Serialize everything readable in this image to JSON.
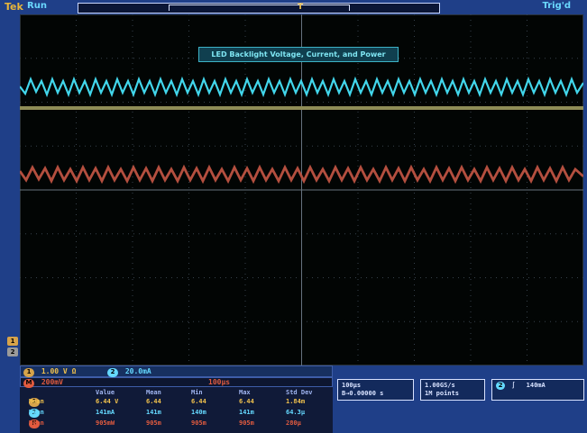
{
  "top": {
    "logo": "Tek",
    "run_state": "Run",
    "trigger_state": "Trig'd",
    "trigger_symbol": "T"
  },
  "screen": {
    "title": "LED Backlight Voltage, Current, and Power"
  },
  "channels": {
    "ch1_scale": "1.00 V",
    "ch1_coupling": "Ω",
    "ch2_number": "2",
    "ch2_scale": "20.0mA",
    "math_label": "M",
    "math_scale": "200mV",
    "math_timebase": "100μs"
  },
  "measurements": {
    "headers": [
      "Value",
      "Mean",
      "Min",
      "Max",
      "Std Dev"
    ],
    "rows": [
      {
        "label": "Mean",
        "values": [
          "6.44 V",
          "6.44",
          "6.44",
          "6.44",
          "1.84m"
        ]
      },
      {
        "label": "Mean",
        "values": [
          "141mA",
          "141m",
          "140m",
          "141m",
          "64.3μ"
        ]
      },
      {
        "label": "Mean",
        "values": [
          "905mW",
          "905m",
          "905m",
          "905m",
          "280μ"
        ]
      }
    ]
  },
  "acquisition": {
    "timebase": "100μs",
    "delay": "B→0.00000 s",
    "sample_rate": "1.00GS/s",
    "record_length": "1M points",
    "trigger_channel": "2",
    "trigger_slope": "∫",
    "trigger_level": "140mA"
  }
}
